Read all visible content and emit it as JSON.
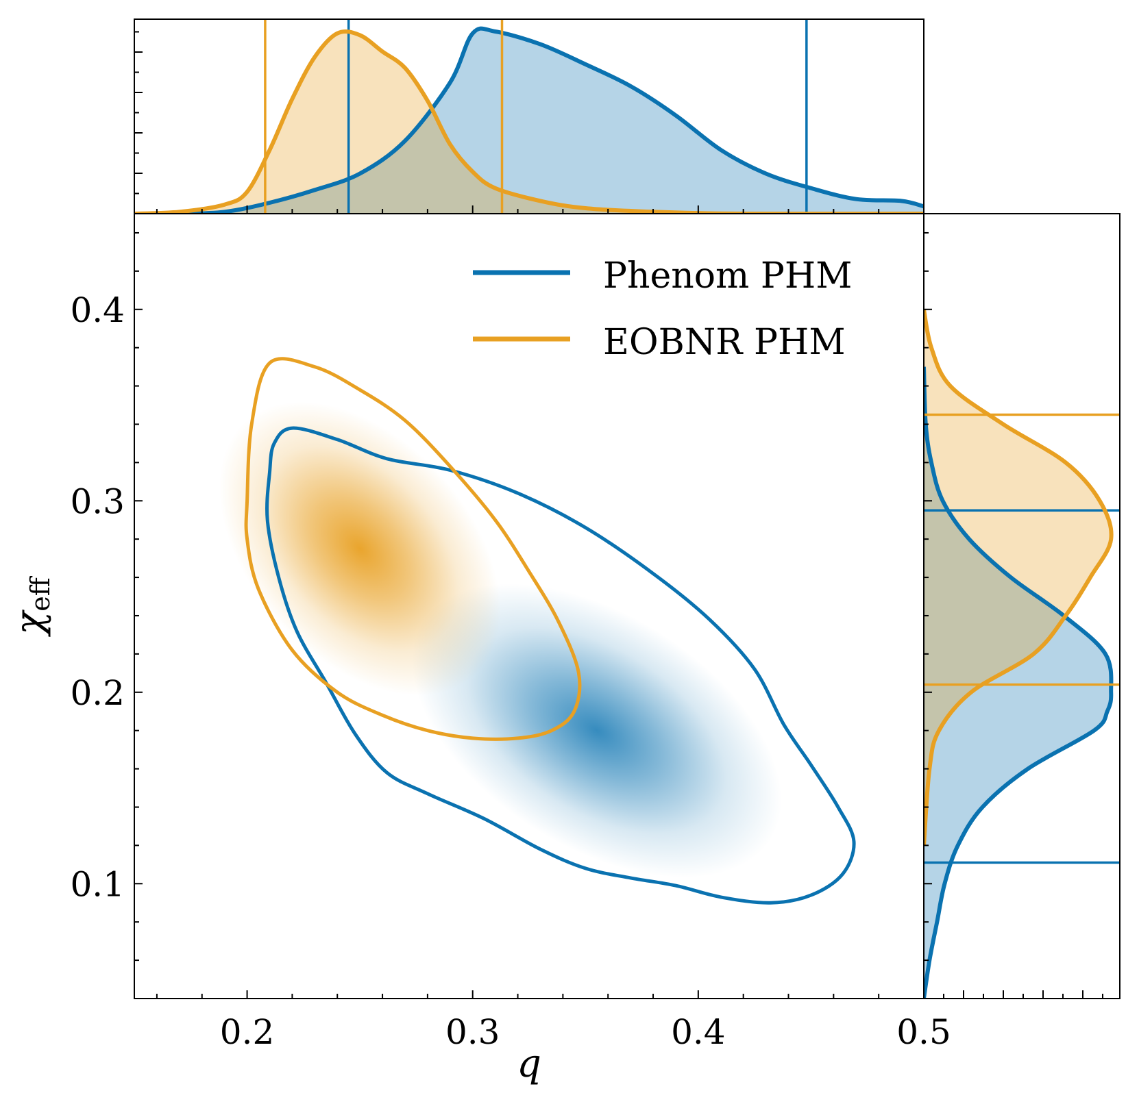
{
  "chart_data": {
    "type": "joint-density",
    "xlabel": "q",
    "ylabel": "χ",
    "ylabel_sub": "eff",
    "xlim": [
      0.15,
      0.5
    ],
    "ylim": [
      0.04,
      0.45
    ],
    "x_ticks": [
      0.2,
      0.3,
      0.4,
      0.5
    ],
    "x_tick_labels": [
      "0.2",
      "0.3",
      "0.4",
      "0.5"
    ],
    "y_ticks": [
      0.1,
      0.2,
      0.3,
      0.4
    ],
    "y_tick_labels": [
      "0.1",
      "0.2",
      "0.3",
      "0.4"
    ],
    "legend": {
      "position": "top-right",
      "entries": [
        "Phenom PHM",
        "EOBNR PHM"
      ]
    },
    "colors": {
      "phenom": "#0a72b0",
      "eobnr": "#e8a022"
    },
    "series": [
      {
        "name": "Phenom PHM",
        "color": "#0a72b0",
        "density_peak": {
          "q": 0.355,
          "chi": 0.18
        },
        "q_interval": [
          0.245,
          0.448
        ],
        "chi_interval": [
          0.111,
          0.295
        ],
        "contour_90": [
          [
            0.21,
            0.315
          ],
          [
            0.212,
            0.33
          ],
          [
            0.22,
            0.338
          ],
          [
            0.24,
            0.332
          ],
          [
            0.262,
            0.322
          ],
          [
            0.29,
            0.316
          ],
          [
            0.32,
            0.304
          ],
          [
            0.35,
            0.286
          ],
          [
            0.38,
            0.262
          ],
          [
            0.405,
            0.238
          ],
          [
            0.425,
            0.212
          ],
          [
            0.438,
            0.183
          ],
          [
            0.45,
            0.162
          ],
          [
            0.462,
            0.14
          ],
          [
            0.469,
            0.122
          ],
          [
            0.464,
            0.105
          ],
          [
            0.45,
            0.094
          ],
          [
            0.432,
            0.09
          ],
          [
            0.41,
            0.093
          ],
          [
            0.39,
            0.099
          ],
          [
            0.37,
            0.103
          ],
          [
            0.35,
            0.108
          ],
          [
            0.33,
            0.118
          ],
          [
            0.305,
            0.134
          ],
          [
            0.28,
            0.147
          ],
          [
            0.262,
            0.158
          ],
          [
            0.248,
            0.178
          ],
          [
            0.235,
            0.205
          ],
          [
            0.222,
            0.232
          ],
          [
            0.214,
            0.26
          ],
          [
            0.209,
            0.29
          ]
        ],
        "q_marginal": [
          [
            0.15,
            0.0
          ],
          [
            0.17,
            0.0
          ],
          [
            0.19,
            0.01
          ],
          [
            0.21,
            0.06
          ],
          [
            0.23,
            0.13
          ],
          [
            0.25,
            0.22
          ],
          [
            0.27,
            0.4
          ],
          [
            0.29,
            0.72
          ],
          [
            0.3,
            0.99
          ],
          [
            0.31,
            1.0
          ],
          [
            0.33,
            0.93
          ],
          [
            0.35,
            0.82
          ],
          [
            0.37,
            0.7
          ],
          [
            0.39,
            0.54
          ],
          [
            0.41,
            0.35
          ],
          [
            0.43,
            0.22
          ],
          [
            0.45,
            0.14
          ],
          [
            0.47,
            0.08
          ],
          [
            0.49,
            0.07
          ],
          [
            0.5,
            0.04
          ]
        ],
        "chi_marginal": [
          [
            0.04,
            0.0
          ],
          [
            0.06,
            0.03
          ],
          [
            0.08,
            0.07
          ],
          [
            0.1,
            0.11
          ],
          [
            0.12,
            0.18
          ],
          [
            0.14,
            0.31
          ],
          [
            0.16,
            0.55
          ],
          [
            0.18,
            0.9
          ],
          [
            0.19,
            0.97
          ],
          [
            0.2,
            0.99
          ],
          [
            0.22,
            0.96
          ],
          [
            0.24,
            0.74
          ],
          [
            0.26,
            0.46
          ],
          [
            0.28,
            0.24
          ],
          [
            0.3,
            0.1
          ],
          [
            0.32,
            0.04
          ],
          [
            0.34,
            0.01
          ],
          [
            0.37,
            0.0
          ]
        ]
      },
      {
        "name": "EOBNR PHM",
        "color": "#e8a022",
        "density_peak": {
          "q": 0.25,
          "chi": 0.275
        },
        "q_interval": [
          0.208,
          0.313
        ],
        "chi_interval": [
          0.204,
          0.345
        ],
        "contour_90": [
          [
            0.2,
            0.3
          ],
          [
            0.202,
            0.34
          ],
          [
            0.21,
            0.372
          ],
          [
            0.23,
            0.37
          ],
          [
            0.25,
            0.358
          ],
          [
            0.27,
            0.342
          ],
          [
            0.29,
            0.318
          ],
          [
            0.31,
            0.29
          ],
          [
            0.325,
            0.263
          ],
          [
            0.338,
            0.237
          ],
          [
            0.347,
            0.21
          ],
          [
            0.345,
            0.19
          ],
          [
            0.335,
            0.18
          ],
          [
            0.32,
            0.176
          ],
          [
            0.3,
            0.176
          ],
          [
            0.28,
            0.18
          ],
          [
            0.26,
            0.188
          ],
          [
            0.24,
            0.2
          ],
          [
            0.22,
            0.222
          ],
          [
            0.205,
            0.254
          ],
          [
            0.2,
            0.28
          ]
        ],
        "q_marginal": [
          [
            0.15,
            0.0
          ],
          [
            0.17,
            0.01
          ],
          [
            0.19,
            0.05
          ],
          [
            0.2,
            0.12
          ],
          [
            0.21,
            0.35
          ],
          [
            0.22,
            0.63
          ],
          [
            0.23,
            0.86
          ],
          [
            0.24,
            0.99
          ],
          [
            0.25,
            0.98
          ],
          [
            0.26,
            0.89
          ],
          [
            0.27,
            0.8
          ],
          [
            0.28,
            0.62
          ],
          [
            0.29,
            0.38
          ],
          [
            0.3,
            0.23
          ],
          [
            0.31,
            0.14
          ],
          [
            0.33,
            0.07
          ],
          [
            0.35,
            0.03
          ],
          [
            0.38,
            0.01
          ],
          [
            0.42,
            0.0
          ],
          [
            0.5,
            0.0
          ]
        ],
        "chi_marginal": [
          [
            0.12,
            0.0
          ],
          [
            0.16,
            0.03
          ],
          [
            0.18,
            0.08
          ],
          [
            0.2,
            0.25
          ],
          [
            0.22,
            0.58
          ],
          [
            0.24,
            0.75
          ],
          [
            0.26,
            0.88
          ],
          [
            0.28,
            0.99
          ],
          [
            0.3,
            0.93
          ],
          [
            0.32,
            0.75
          ],
          [
            0.34,
            0.42
          ],
          [
            0.36,
            0.14
          ],
          [
            0.38,
            0.04
          ],
          [
            0.4,
            0.0
          ]
        ]
      }
    ]
  }
}
